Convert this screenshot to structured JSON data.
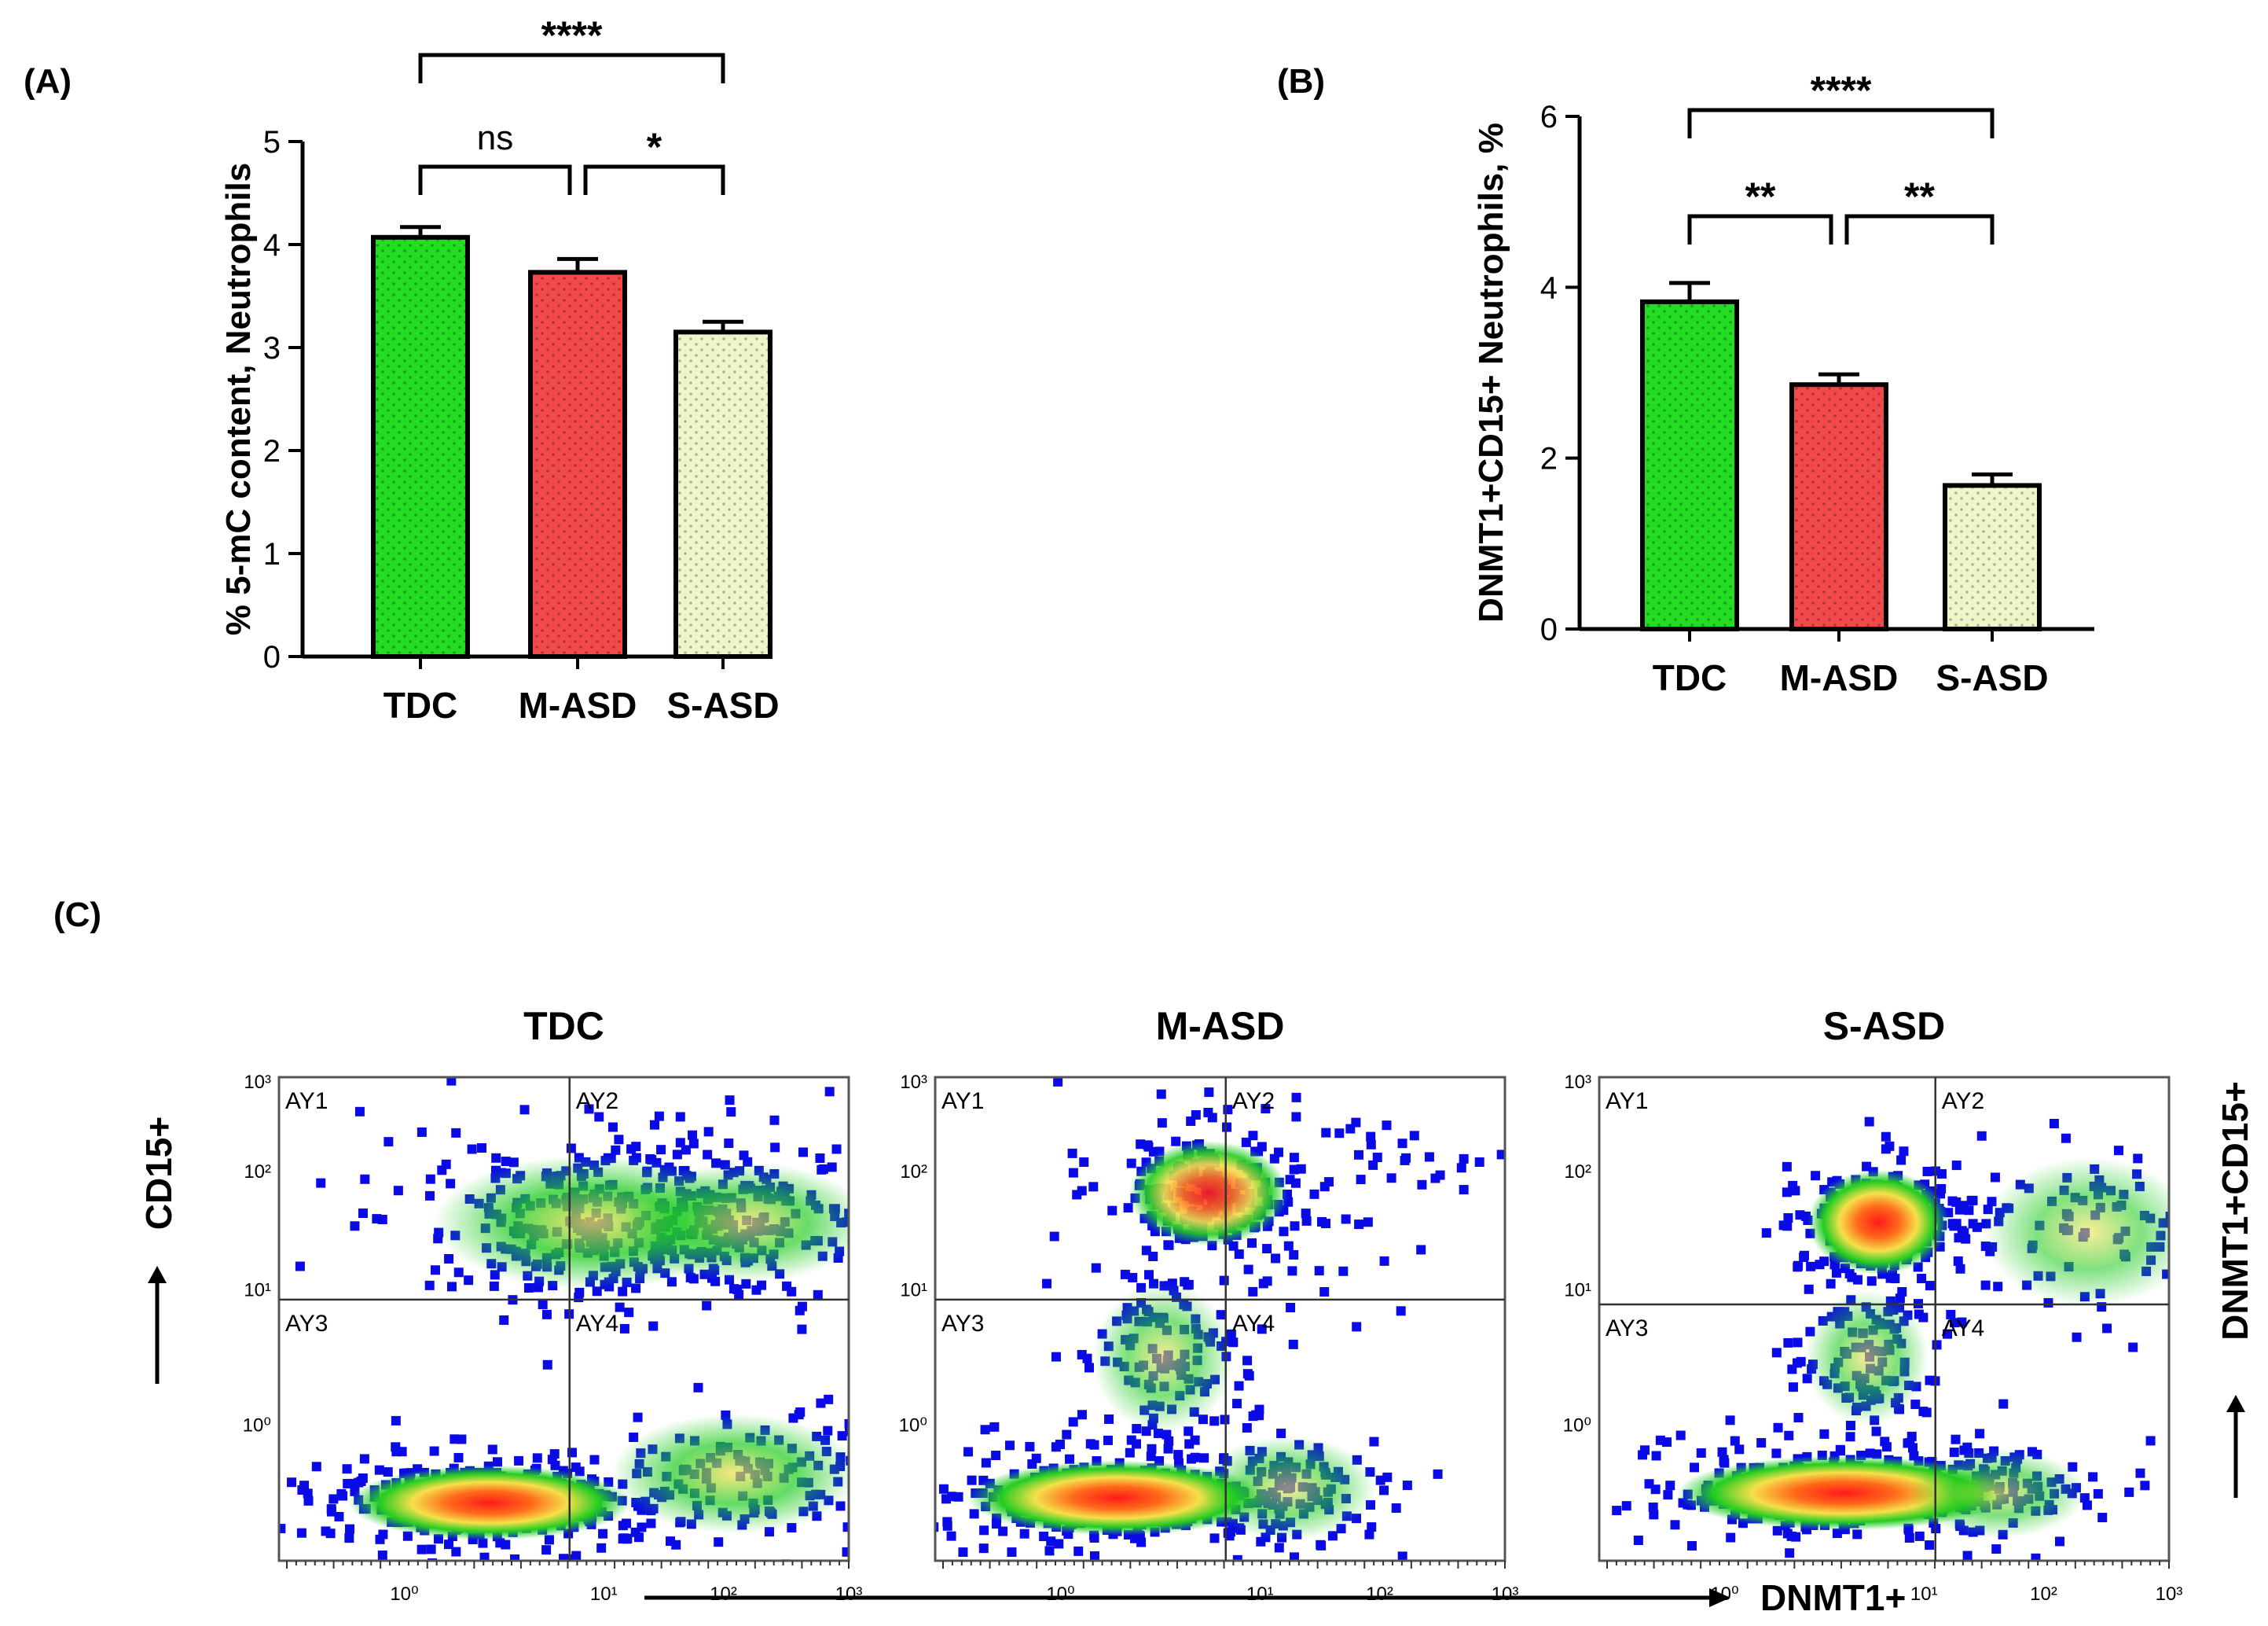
{
  "chart_data": [
    {
      "panel_label": "(A)",
      "type": "bar",
      "categories": [
        "TDC",
        "M-ASD",
        "S-ASD"
      ],
      "values": [
        4.07,
        3.73,
        3.15
      ],
      "errors": [
        0.1,
        0.13,
        0.1
      ],
      "colors": [
        "#22dd22",
        "#f24a4a",
        "#eff5c8"
      ],
      "patterns": [
        "dots",
        "dots",
        "dots"
      ],
      "ylabel": "% 5-mC content, Neutrophils",
      "ylim": [
        0,
        5
      ],
      "yticks": [
        "0",
        "1",
        "2",
        "3",
        "4",
        "5"
      ],
      "brackets": [
        {
          "from": 0,
          "to": 1,
          "label": "ns"
        },
        {
          "from": 1,
          "to": 2,
          "label": "*"
        },
        {
          "from": 0,
          "to": 2,
          "label": "****"
        }
      ]
    },
    {
      "panel_label": "(B)",
      "type": "bar",
      "categories": [
        "TDC",
        "M-ASD",
        "S-ASD"
      ],
      "values": [
        3.83,
        2.86,
        1.68
      ],
      "errors": [
        0.22,
        0.12,
        0.13
      ],
      "colors": [
        "#22dd22",
        "#f24a4a",
        "#eff5c8"
      ],
      "patterns": [
        "dots",
        "dots",
        "dots"
      ],
      "ylabel": "DNMT1+CD15+ Neutrophils, %",
      "ylim": [
        0,
        6
      ],
      "yticks": [
        "0",
        "2",
        "4",
        "6"
      ],
      "brackets": [
        {
          "from": 0,
          "to": 1,
          "label": "**"
        },
        {
          "from": 1,
          "to": 2,
          "label": "**"
        },
        {
          "from": 0,
          "to": 2,
          "label": "****"
        }
      ]
    },
    {
      "panel_label": "(C)",
      "type": "scatter",
      "plots": [
        {
          "title": "TDC",
          "quadrants": [
            "AY1",
            "AY2",
            "AY3",
            "AY4"
          ]
        },
        {
          "title": "M-ASD",
          "quadrants": [
            "AY1",
            "AY2",
            "AY3",
            "AY4"
          ]
        },
        {
          "title": "S-ASD",
          "quadrants": [
            "AY1",
            "AY2",
            "AY3",
            "AY4"
          ]
        }
      ],
      "tick_labels": [
        "10⁰",
        "10¹",
        "10²",
        "10³"
      ],
      "ylabel_left": "CD15+",
      "ylabel_right": "DNMT1+CD15+",
      "xlabel": "DNMT1+",
      "density_colors": [
        "#0000ee",
        "#22cc22",
        "#f5e04a",
        "#ff2020"
      ]
    }
  ]
}
